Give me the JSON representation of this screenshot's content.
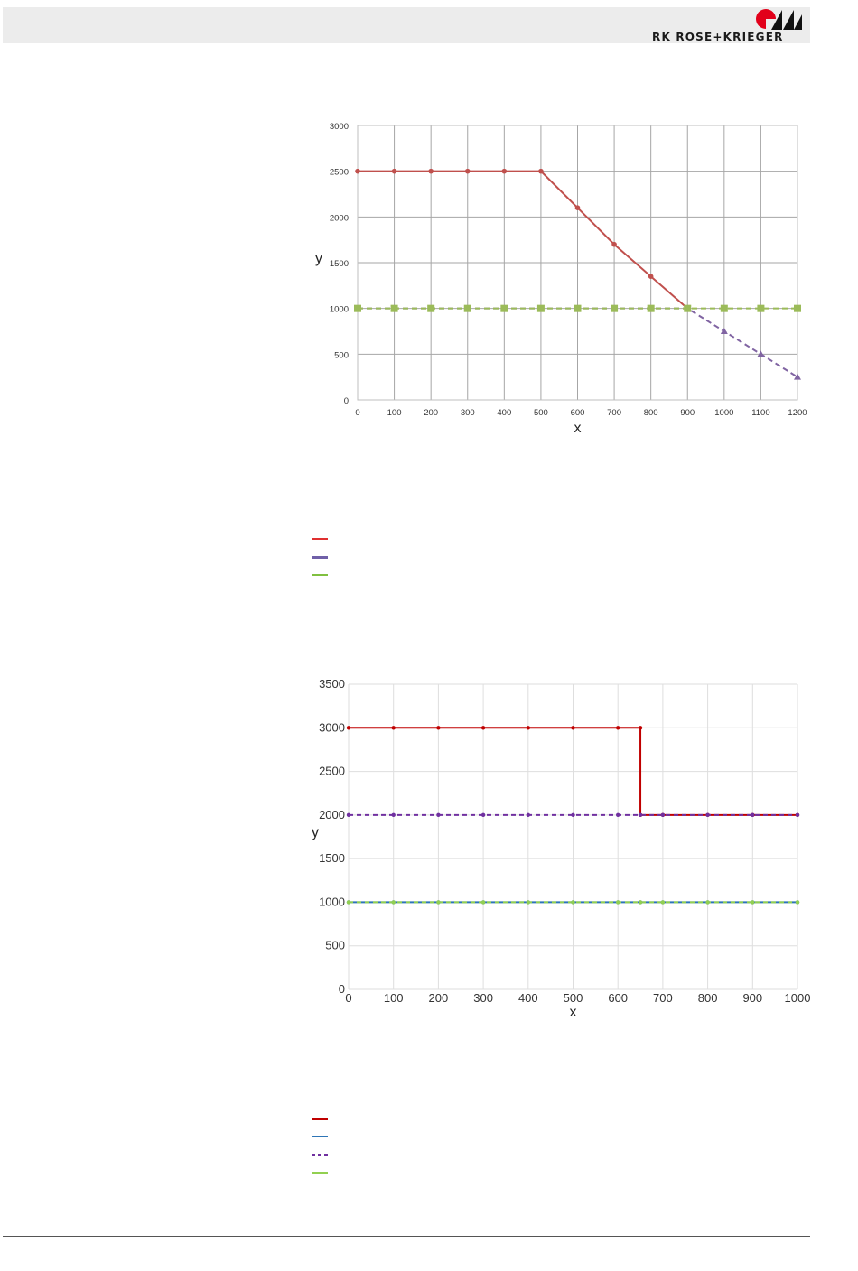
{
  "header": {
    "brand_text": "RK ROSE+KRIEGER",
    "band_color": "#ececec",
    "logo_icon": "rk-logo-icon"
  },
  "chart_data": [
    {
      "type": "line",
      "title": "",
      "xlabel": "x",
      "ylabel": "y",
      "xlim": [
        0,
        1200
      ],
      "ylim": [
        0,
        3000
      ],
      "xticks": [
        0,
        100,
        200,
        300,
        400,
        500,
        600,
        700,
        800,
        900,
        1000,
        1100,
        1200
      ],
      "yticks": [
        0,
        500,
        1000,
        1500,
        2000,
        2500,
        3000
      ],
      "grid": true,
      "series": [
        {
          "color": "#c0504d",
          "dash": "solid",
          "marker": "circle",
          "x": [
            0,
            100,
            200,
            300,
            400,
            500,
            600,
            700,
            800,
            900
          ],
          "y": [
            2500,
            2500,
            2500,
            2500,
            2500,
            2500,
            2100,
            1700,
            1350,
            1000
          ]
        },
        {
          "color": "#8064a2",
          "dash": "dashed",
          "marker": "triangle",
          "x": [
            0,
            100,
            200,
            300,
            400,
            500,
            600,
            700,
            800,
            900,
            1000,
            1100,
            1200
          ],
          "y": [
            1000,
            1000,
            1000,
            1000,
            1000,
            1000,
            1000,
            1000,
            1000,
            1000,
            750,
            500,
            250
          ]
        },
        {
          "color": "#9bbb59",
          "dash": "dashed",
          "marker": "square",
          "x": [
            0,
            100,
            200,
            300,
            400,
            500,
            600,
            700,
            800,
            900,
            1000,
            1100,
            1200
          ],
          "y": [
            1000,
            1000,
            1000,
            1000,
            1000,
            1000,
            1000,
            1000,
            1000,
            1000,
            1000,
            1000,
            1000
          ]
        }
      ],
      "legend": [
        {
          "color": "#e03030",
          "style": "solid"
        },
        {
          "color": "#7060a8",
          "style": "solid"
        },
        {
          "color": "#80c040",
          "style": "solid"
        }
      ]
    },
    {
      "type": "line",
      "title": "",
      "xlabel": "x",
      "ylabel": "y",
      "xlim": [
        0,
        1000
      ],
      "ylim": [
        0,
        3500
      ],
      "xticks": [
        0,
        100,
        200,
        300,
        400,
        500,
        600,
        700,
        800,
        900,
        1000
      ],
      "yticks": [
        0,
        500,
        1000,
        1500,
        2000,
        2500,
        3000,
        3500
      ],
      "grid": true,
      "series": [
        {
          "color": "#c00000",
          "dash": "solid",
          "marker": "circle",
          "x": [
            0,
            100,
            200,
            300,
            400,
            500,
            600,
            650,
            650,
            700,
            800,
            900,
            1000
          ],
          "y": [
            3000,
            3000,
            3000,
            3000,
            3000,
            3000,
            3000,
            3000,
            2000,
            2000,
            2000,
            2000,
            2000
          ]
        },
        {
          "color": "#2e75b6",
          "dash": "solid",
          "marker": "circle",
          "x": [
            0,
            100,
            200,
            300,
            400,
            500,
            600,
            650,
            700,
            800,
            900,
            1000
          ],
          "y": [
            1000,
            1000,
            1000,
            1000,
            1000,
            1000,
            1000,
            1000,
            1000,
            1000,
            1000,
            1000
          ]
        },
        {
          "color": "#7030a0",
          "dash": "dashed",
          "marker": "circle",
          "x": [
            0,
            100,
            200,
            300,
            400,
            500,
            600,
            650,
            700,
            800,
            900,
            1000
          ],
          "y": [
            2000,
            2000,
            2000,
            2000,
            2000,
            2000,
            2000,
            2000,
            2000,
            2000,
            2000,
            2000
          ]
        },
        {
          "color": "#92d050",
          "dash": "dashed",
          "marker": "circle",
          "x": [
            0,
            100,
            200,
            300,
            400,
            500,
            600,
            650,
            700,
            800,
            900,
            1000
          ],
          "y": [
            1000,
            1000,
            1000,
            1000,
            1000,
            1000,
            1000,
            1000,
            1000,
            1000,
            1000,
            1000
          ]
        }
      ],
      "legend": [
        {
          "color": "#c00000",
          "style": "solid"
        },
        {
          "color": "#2e75b6",
          "style": "solid"
        },
        {
          "color": "#7030a0",
          "style": "dotted"
        },
        {
          "color": "#92d050",
          "style": "solid"
        }
      ]
    }
  ]
}
